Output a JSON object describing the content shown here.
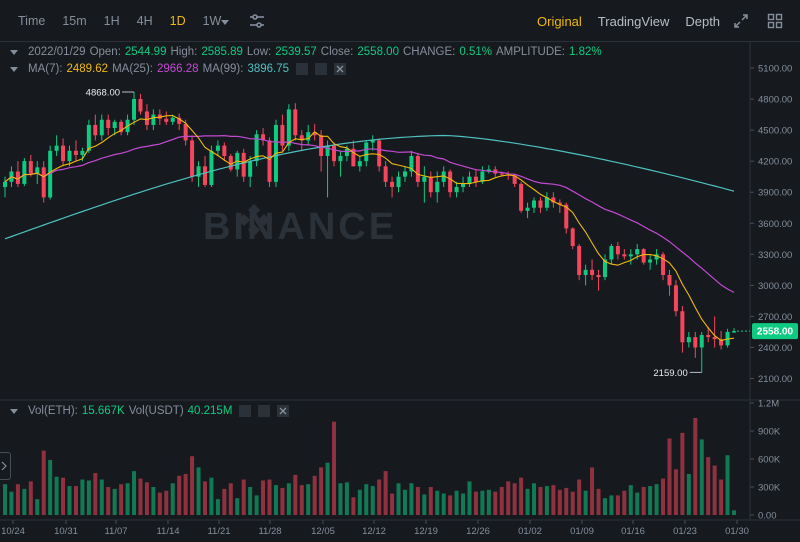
{
  "toolbar": {
    "intervals": [
      {
        "label": "Time",
        "active": false
      },
      {
        "label": "15m",
        "active": false
      },
      {
        "label": "1H",
        "active": false
      },
      {
        "label": "4H",
        "active": false
      },
      {
        "label": "1D",
        "active": true
      },
      {
        "label": "1W",
        "active": false
      }
    ],
    "views": [
      {
        "label": "Original",
        "active": true
      },
      {
        "label": "TradingView",
        "active": false
      },
      {
        "label": "Depth",
        "active": false
      }
    ],
    "icons": [
      "chevron-down-icon",
      "settings-sliders-icon",
      "expand-icon",
      "grid-layout-icon"
    ]
  },
  "ohlc": {
    "date": "2022/01/29",
    "open_label": "Open:",
    "open": "2544.99",
    "high_label": "High:",
    "high": "2585.89",
    "low_label": "Low:",
    "low": "2539.57",
    "close_label": "Close:",
    "close": "2558.00",
    "change_label": "CHANGE:",
    "change": "0.51%",
    "amplitude_label": "AMPLITUDE:",
    "amplitude": "1.82%"
  },
  "ma": {
    "ma7_label": "MA(7):",
    "ma7": "2489.62",
    "ma25_label": "MA(25):",
    "ma25": "2966.28",
    "ma99_label": "MA(99):",
    "ma99": "3896.75"
  },
  "vol": {
    "eth_label": "Vol(ETH):",
    "eth": "15.667K",
    "usdt_label": "Vol(USDT)",
    "usdt": "40.215M"
  },
  "price_axis": [
    "5100.00",
    "4800.00",
    "4500.00",
    "4200.00",
    "3900.00",
    "3600.00",
    "3300.00",
    "3000.00",
    "2700.00",
    "2400.00",
    "2100.00"
  ],
  "volume_axis": [
    "1.2M",
    "900K",
    "600K",
    "300K",
    "0.00"
  ],
  "date_axis": [
    "10/24",
    "10/31",
    "11/07",
    "11/14",
    "11/21",
    "11/28",
    "12/05",
    "12/12",
    "12/19",
    "12/26",
    "01/02",
    "01/09",
    "01/16",
    "01/23",
    "01/30"
  ],
  "current_price": "2558.00",
  "high_marker": "4868.00",
  "low_marker": "2159.00",
  "watermark": "BINANCE",
  "colors": {
    "up": "#0ecb81",
    "down": "#f6465d",
    "ma7": "#f0b90b",
    "ma25": "#c449d4",
    "ma99": "#4fc0c0",
    "accent": "#f0b90b"
  },
  "chart_data": {
    "type": "candlestick",
    "interval": "1D",
    "price_range": [
      1900,
      5300
    ],
    "volume_range": [
      0,
      1200000
    ],
    "candles": [
      [
        3950,
        4050,
        3850,
        4000,
        330000
      ],
      [
        4000,
        4150,
        3950,
        4100,
        250000
      ],
      [
        4100,
        4200,
        3950,
        3980,
        330000
      ],
      [
        3980,
        4230,
        3960,
        4200,
        280000
      ],
      [
        4200,
        4260,
        4050,
        4080,
        360000
      ],
      [
        4080,
        4200,
        3980,
        4140,
        170000
      ],
      [
        4140,
        4200,
        3800,
        3850,
        690000
      ],
      [
        3850,
        4350,
        3830,
        4300,
        590000
      ],
      [
        4300,
        4450,
        4250,
        4350,
        410000
      ],
      [
        4350,
        4420,
        4150,
        4200,
        400000
      ],
      [
        4200,
        4350,
        4150,
        4300,
        310000
      ],
      [
        4300,
        4400,
        4200,
        4260,
        310000
      ],
      [
        4260,
        4330,
        4200,
        4300,
        380000
      ],
      [
        4300,
        4600,
        4280,
        4550,
        370000
      ],
      [
        4550,
        4650,
        4400,
        4450,
        450000
      ],
      [
        4450,
        4650,
        4400,
        4600,
        380000
      ],
      [
        4600,
        4650,
        4450,
        4520,
        300000
      ],
      [
        4520,
        4600,
        4450,
        4580,
        280000
      ],
      [
        4580,
        4600,
        4450,
        4480,
        330000
      ],
      [
        4480,
        4650,
        4450,
        4600,
        340000
      ],
      [
        4600,
        4868,
        4550,
        4800,
        470000
      ],
      [
        4800,
        4850,
        4650,
        4680,
        390000
      ],
      [
        4680,
        4750,
        4500,
        4550,
        350000
      ],
      [
        4550,
        4700,
        4500,
        4650,
        300000
      ],
      [
        4650,
        4700,
        4550,
        4610,
        240000
      ],
      [
        4610,
        4680,
        4550,
        4580,
        260000
      ],
      [
        4580,
        4650,
        4550,
        4620,
        340000
      ],
      [
        4620,
        4660,
        4500,
        4560,
        420000
      ],
      [
        4560,
        4600,
        4350,
        4400,
        440000
      ],
      [
        4400,
        4450,
        4000,
        4050,
        630000
      ],
      [
        4050,
        4200,
        3950,
        4150,
        510000
      ],
      [
        4150,
        4250,
        3950,
        3970,
        360000
      ],
      [
        3970,
        4350,
        3950,
        4300,
        400000
      ],
      [
        4300,
        4400,
        4250,
        4350,
        170000
      ],
      [
        4350,
        4380,
        4200,
        4250,
        280000
      ],
      [
        4250,
        4270,
        4100,
        4120,
        340000
      ],
      [
        4120,
        4300,
        4050,
        4280,
        180000
      ],
      [
        4280,
        4320,
        4000,
        4050,
        380000
      ],
      [
        4050,
        4250,
        3950,
        4200,
        300000
      ],
      [
        4200,
        4500,
        4150,
        4460,
        210000
      ],
      [
        4460,
        4520,
        4350,
        4400,
        370000
      ],
      [
        4400,
        4430,
        3950,
        4000,
        380000
      ],
      [
        4000,
        4600,
        3950,
        4550,
        320000
      ],
      [
        4550,
        4650,
        4300,
        4350,
        290000
      ],
      [
        4350,
        4750,
        4300,
        4700,
        340000
      ],
      [
        4700,
        4760,
        4400,
        4450,
        430000
      ],
      [
        4450,
        4500,
        4300,
        4400,
        320000
      ],
      [
        4400,
        4550,
        4350,
        4480,
        330000
      ],
      [
        4480,
        4560,
        4400,
        4450,
        420000
      ],
      [
        4450,
        4500,
        4100,
        4250,
        510000
      ],
      [
        4250,
        4400,
        3850,
        4350,
        560000
      ],
      [
        4350,
        4380,
        4150,
        4200,
        1000000
      ],
      [
        4200,
        4300,
        4050,
        4250,
        340000
      ],
      [
        4250,
        4350,
        4200,
        4320,
        350000
      ],
      [
        4320,
        4400,
        4150,
        4150,
        190000
      ],
      [
        4150,
        4250,
        4100,
        4200,
        270000
      ],
      [
        4200,
        4400,
        4150,
        4380,
        330000
      ],
      [
        4380,
        4450,
        4300,
        4400,
        310000
      ],
      [
        4400,
        4420,
        4100,
        4150,
        380000
      ],
      [
        4150,
        4200,
        3950,
        4000,
        470000
      ],
      [
        4000,
        4050,
        3850,
        3950,
        230000
      ],
      [
        3950,
        4100,
        3900,
        4050,
        340000
      ],
      [
        4050,
        4150,
        4000,
        4100,
        270000
      ],
      [
        4100,
        4300,
        4050,
        4250,
        340000
      ],
      [
        4250,
        4280,
        3950,
        4000,
        300000
      ],
      [
        4000,
        4150,
        3800,
        4050,
        220000
      ],
      [
        4050,
        4100,
        3850,
        3900,
        300000
      ],
      [
        3900,
        4100,
        3800,
        4000,
        260000
      ],
      [
        4000,
        4150,
        3950,
        4100,
        230000
      ],
      [
        4100,
        4120,
        3850,
        3900,
        210000
      ],
      [
        3900,
        4000,
        3850,
        3950,
        260000
      ],
      [
        3950,
        4050,
        3900,
        3980,
        230000
      ],
      [
        3980,
        4100,
        3950,
        4050,
        360000
      ],
      [
        4050,
        4120,
        3950,
        4000,
        250000
      ],
      [
        4000,
        4150,
        3980,
        4100,
        260000
      ],
      [
        4100,
        4160,
        4080,
        4120,
        270000
      ],
      [
        4120,
        4150,
        4050,
        4080,
        250000
      ],
      [
        4080,
        4100,
        4050,
        4070,
        300000
      ],
      [
        4070,
        4100,
        4020,
        4060,
        360000
      ],
      [
        4060,
        4080,
        3950,
        3980,
        340000
      ],
      [
        3980,
        4000,
        3700,
        3720,
        400000
      ],
      [
        3720,
        3800,
        3650,
        3750,
        280000
      ],
      [
        3750,
        3850,
        3700,
        3820,
        340000
      ],
      [
        3820,
        3850,
        3700,
        3750,
        300000
      ],
      [
        3750,
        3900,
        3720,
        3850,
        310000
      ],
      [
        3850,
        3900,
        3750,
        3800,
        320000
      ],
      [
        3800,
        3830,
        3700,
        3780,
        270000
      ],
      [
        3780,
        3800,
        3500,
        3550,
        290000
      ],
      [
        3550,
        3560,
        3350,
        3380,
        250000
      ],
      [
        3380,
        3400,
        3050,
        3100,
        380000
      ],
      [
        3100,
        3200,
        3000,
        3150,
        260000
      ],
      [
        3150,
        3250,
        3050,
        3100,
        510000
      ],
      [
        3100,
        3150,
        2950,
        3080,
        280000
      ],
      [
        3080,
        3300,
        3050,
        3250,
        180000
      ],
      [
        3250,
        3400,
        3200,
        3380,
        210000
      ],
      [
        3380,
        3420,
        3250,
        3300,
        210000
      ],
      [
        3300,
        3350,
        3250,
        3280,
        260000
      ],
      [
        3280,
        3350,
        3200,
        3300,
        320000
      ],
      [
        3300,
        3400,
        3250,
        3350,
        240000
      ],
      [
        3350,
        3360,
        3200,
        3220,
        300000
      ],
      [
        3220,
        3300,
        3150,
        3250,
        310000
      ],
      [
        3250,
        3350,
        3200,
        3300,
        330000
      ],
      [
        3300,
        3320,
        3050,
        3100,
        390000
      ],
      [
        3100,
        3150,
        2900,
        3000,
        820000
      ],
      [
        3000,
        3050,
        2700,
        2750,
        490000
      ],
      [
        2750,
        2800,
        2350,
        2450,
        880000
      ],
      [
        2450,
        2550,
        2400,
        2500,
        440000
      ],
      [
        2500,
        2550,
        2300,
        2400,
        1040000
      ],
      [
        2400,
        2550,
        2159,
        2520,
        810000
      ],
      [
        2520,
        2600,
        2450,
        2500,
        620000
      ],
      [
        2500,
        2700,
        2400,
        2480,
        530000
      ],
      [
        2480,
        2560,
        2380,
        2420,
        380000
      ],
      [
        2420,
        2580,
        2400,
        2550,
        640000
      ],
      [
        2545,
        2586,
        2540,
        2558,
        50000
      ]
    ],
    "ma_periods": [
      7,
      25,
      99
    ]
  }
}
